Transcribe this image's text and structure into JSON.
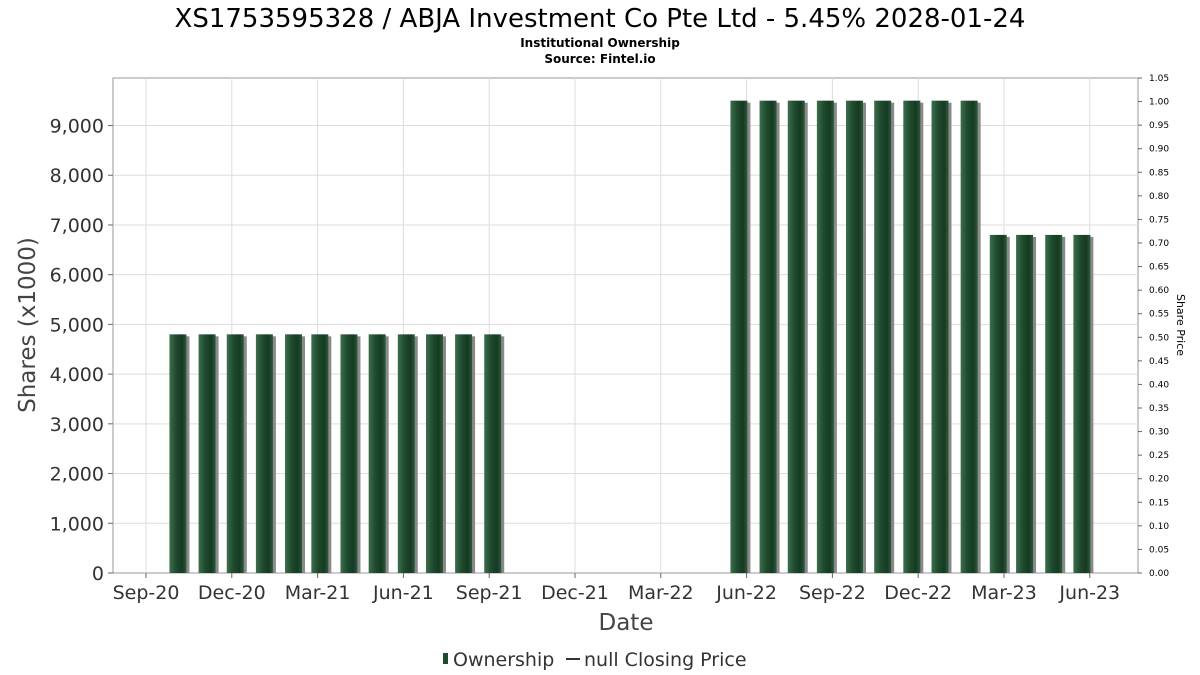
{
  "chart_data": {
    "type": "bar",
    "title": "XS1753595328 / ABJA Investment Co Pte Ltd - 5.45% 2028-01-24",
    "subtitle_lines": [
      "Institutional Ownership",
      "Source: Fintel.io"
    ],
    "xlabel": "Date",
    "ylabel": "Shares (x1000)",
    "ylabel_right": "Share Price",
    "ylim": [
      0,
      10000
    ],
    "ylim_right": [
      0,
      1.05
    ],
    "yticks_left": [
      "0",
      "1,000",
      "2,000",
      "3,000",
      "4,000",
      "5,000",
      "6,000",
      "7,000",
      "8,000",
      "9,000"
    ],
    "yticks_right": [
      "0.00",
      "0.05",
      "0.10",
      "0.15",
      "0.20",
      "0.25",
      "0.30",
      "0.35",
      "0.40",
      "0.45",
      "0.50",
      "0.55",
      "0.60",
      "0.65",
      "0.70",
      "0.75",
      "0.80",
      "0.85",
      "0.90",
      "0.95",
      "1.00",
      "1.05"
    ],
    "xticks": [
      "Sep-20",
      "Dec-20",
      "Mar-21",
      "Jun-21",
      "Sep-21",
      "Dec-21",
      "Mar-22",
      "Jun-22",
      "Sep-22",
      "Dec-22",
      "Mar-23",
      "Jun-23"
    ],
    "grid": true,
    "legend_position": "bottom",
    "bar_color": "#1e4a2e",
    "series": [
      {
        "name": "Ownership",
        "points": [
          {
            "x": "2020-10-05",
            "y": 4800
          },
          {
            "x": "2020-11-05",
            "y": 4800
          },
          {
            "x": "2020-12-05",
            "y": 4800
          },
          {
            "x": "2021-01-05",
            "y": 4800
          },
          {
            "x": "2021-02-05",
            "y": 4800
          },
          {
            "x": "2021-03-05",
            "y": 4800
          },
          {
            "x": "2021-04-05",
            "y": 4800
          },
          {
            "x": "2021-05-05",
            "y": 4800
          },
          {
            "x": "2021-06-05",
            "y": 4800
          },
          {
            "x": "2021-07-05",
            "y": 4800
          },
          {
            "x": "2021-08-05",
            "y": 4800
          },
          {
            "x": "2021-09-05",
            "y": 4800
          },
          {
            "x": "2022-05-25",
            "y": 9500
          },
          {
            "x": "2022-06-25",
            "y": 9500
          },
          {
            "x": "2022-07-25",
            "y": 9500
          },
          {
            "x": "2022-08-25",
            "y": 9500
          },
          {
            "x": "2022-09-25",
            "y": 9500
          },
          {
            "x": "2022-10-25",
            "y": 9500
          },
          {
            "x": "2022-11-25",
            "y": 9500
          },
          {
            "x": "2022-12-25",
            "y": 9500
          },
          {
            "x": "2023-01-25",
            "y": 9500
          },
          {
            "x": "2023-02-25",
            "y": 6800
          },
          {
            "x": "2023-03-25",
            "y": 6800
          },
          {
            "x": "2023-04-25",
            "y": 6800
          },
          {
            "x": "2023-05-25",
            "y": 6800
          }
        ]
      }
    ],
    "legend": [
      {
        "label": "Ownership",
        "symbol": "bar"
      },
      {
        "label": "null Closing Price",
        "symbol": "line"
      }
    ]
  }
}
